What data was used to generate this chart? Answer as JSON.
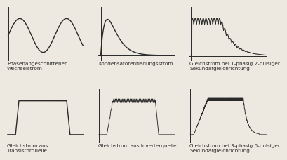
{
  "background_color": "#ede9e0",
  "line_color": "#2a2a2a",
  "labels": [
    "Phasenangeschnittener\nWechselstrom",
    "Kondensatorentladungsstrom",
    "Gleichstrom bei 1-phasig 2-pulsiger\nSekundärgleichrichtung",
    "Gleichstrom aus\nTransistorquelle",
    "Gleichstrom aus Inverterquelle",
    "Gleichstrom bei 3-phasig 6-pulsiger\nSekundärgleichrichtung"
  ],
  "label_fontsize": 5.2,
  "line_width": 1.0,
  "fig_bg": "#ede9e0"
}
